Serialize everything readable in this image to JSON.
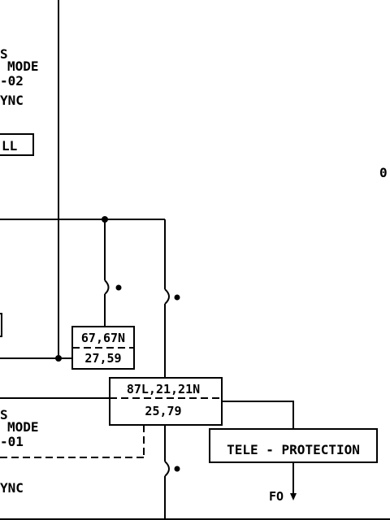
{
  "labels": {
    "top_mode_s": "S",
    "top_mode": "MODE",
    "top_mode_num": "-02",
    "top_sync": "YNC",
    "small_box": "LL",
    "right_edge": "0",
    "bottom_mode_s": "S",
    "bottom_mode": "MODE",
    "bottom_mode_num": "-01",
    "bottom_sync": "YNC",
    "relay_a_top": "67,67N",
    "relay_a_bottom": "27,59",
    "relay_b_top": "87L,21,21N",
    "relay_b_bottom": "25,79",
    "tele_protection": "TELE - PROTECTION",
    "fo": "FO"
  }
}
